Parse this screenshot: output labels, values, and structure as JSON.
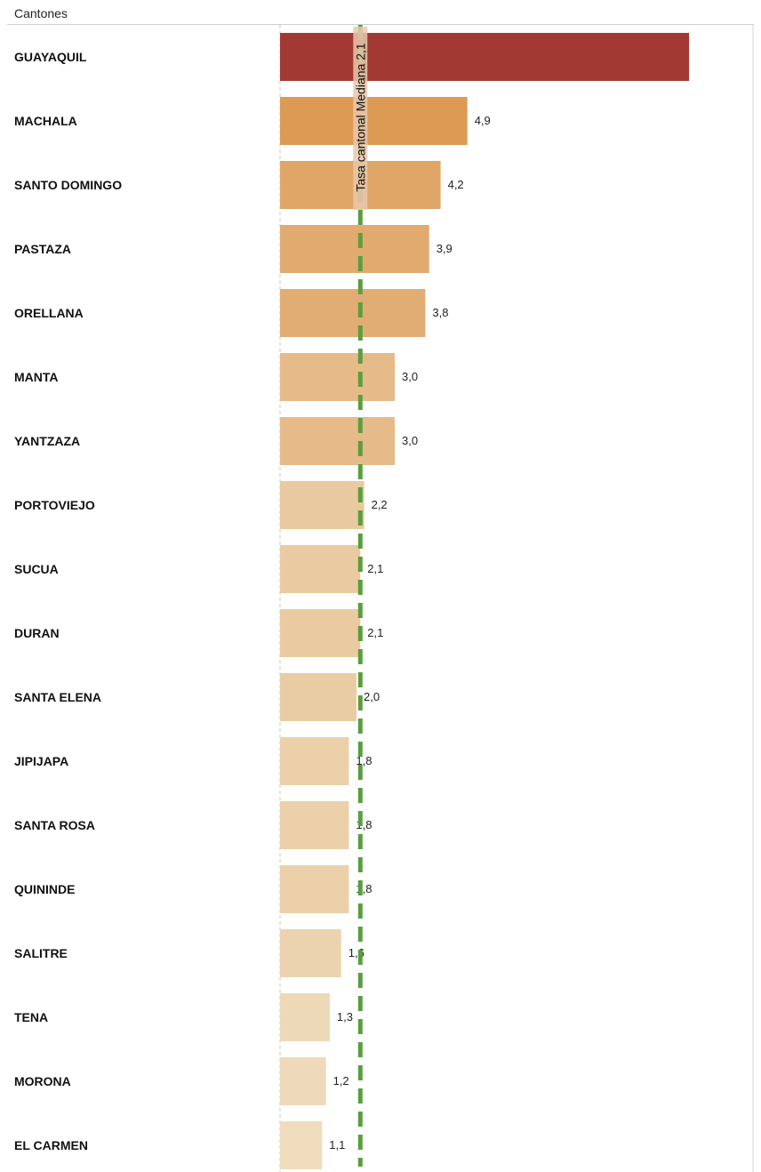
{
  "header": {
    "label": "Cantones"
  },
  "chart_data": {
    "type": "bar",
    "orientation": "horizontal",
    "categories": [
      "GUAYAQUIL",
      "MACHALA",
      "SANTO DOMINGO",
      "PASTAZA",
      "ORELLANA",
      "MANTA",
      "YANTZAZA",
      "PORTOVIEJO",
      "SUCUA",
      "DURAN",
      "SANTA ELENA",
      "JIPIJAPA",
      "SANTA ROSA",
      "QUININDE",
      "SALITRE",
      "TENA",
      "MORONA",
      "EL CARMEN"
    ],
    "values": [
      10.7,
      4.9,
      4.2,
      3.9,
      3.8,
      3.0,
      3.0,
      2.2,
      2.1,
      2.1,
      2.0,
      1.8,
      1.8,
      1.8,
      1.6,
      1.3,
      1.2,
      1.1
    ],
    "value_labels": [
      "",
      "4,9",
      "4,2",
      "3,9",
      "3,8",
      "3,0",
      "3,0",
      "2,2",
      "2,1",
      "2,1",
      "2,0",
      "1,8",
      "1,8",
      "1,8",
      "1,6",
      "1,3",
      "1,2",
      "1,1"
    ],
    "reference_line": {
      "value": 2.1,
      "label": "Tasa  cantonal Mediana 2,1",
      "color": "#5a9e3f"
    },
    "colors": {
      "top_bar": "#a23a33",
      "gradient_high": "#dd9a54",
      "gradient_low": "#eedcbd"
    },
    "xlim": [
      0,
      12
    ],
    "legend": "none",
    "grid": false
  }
}
